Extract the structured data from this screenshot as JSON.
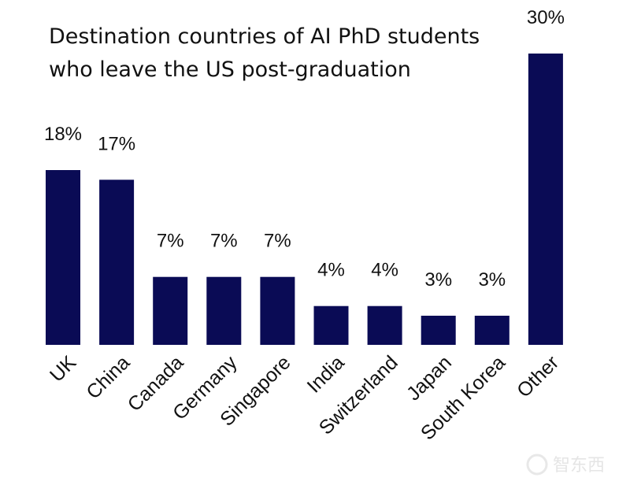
{
  "chart_data": {
    "type": "bar",
    "title_lines": [
      "Destination countries of AI PhD students",
      "who leave the US post-graduation"
    ],
    "categories": [
      "UK",
      "China",
      "Canada",
      "Germany",
      "Singapore",
      "India",
      "Switzerland",
      "Japan",
      "South Korea",
      "Other"
    ],
    "values": [
      18,
      17,
      7,
      7,
      7,
      4,
      4,
      3,
      3,
      30
    ],
    "value_labels": [
      "18%",
      "17%",
      "7%",
      "7%",
      "7%",
      "4%",
      "4%",
      "3%",
      "3%",
      "30%"
    ],
    "unit": "%",
    "ylim": [
      0,
      30
    ],
    "bar_color": "#0a0b55",
    "grid": false,
    "legend": "none"
  },
  "watermark": {
    "text": "智东西"
  }
}
